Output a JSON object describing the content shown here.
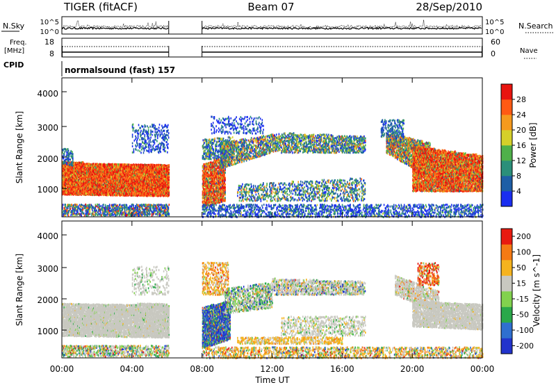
{
  "header": {
    "title": "TIGER (fitACF)",
    "beam": "Beam 07",
    "date": "28/Sep/2010"
  },
  "chart_data": [
    {
      "type": "line",
      "panel": "noise",
      "left_label": "N.Sky",
      "right_label": "N.Search",
      "left_ticks": [
        "10^5",
        "10^0"
      ],
      "right_ticks": [
        "10^5",
        "10^0"
      ],
      "right_legend_style": "dotted",
      "data_gap_ut": [
        6.1,
        8.0
      ]
    },
    {
      "type": "line",
      "panel": "frequency",
      "left_label_lines": [
        "Freq.",
        "[MHz]"
      ],
      "right_label": "Nave",
      "left_ticks": [
        "18",
        "8"
      ],
      "right_ticks": [
        "60",
        "0"
      ],
      "right_legend_style": "dotted",
      "data_gap_ut": [
        6.1,
        8.0
      ]
    },
    {
      "type": "table",
      "panel": "cpid",
      "label": "CPID",
      "value": "normalsound (fast) 157"
    },
    {
      "type": "heatmap",
      "panel": "power",
      "ylabel": "Slant Range [km]",
      "y_ticks": [
        "4000",
        "3000",
        "2000",
        "1000"
      ],
      "ylim": [
        180,
        4500
      ],
      "colorbar_label": "Power [dB]",
      "colorbar_ticks": [
        "28",
        "24",
        "20",
        "16",
        "12",
        "8",
        "4"
      ],
      "colors": [
        "#1a2ef0",
        "#1e5ea6",
        "#2b8f7a",
        "#4fb04a",
        "#d6d02a",
        "#f59a1e",
        "#ff5a14",
        "#e8140f"
      ],
      "data_gap_ut": [
        6.1,
        8.0
      ]
    },
    {
      "type": "heatmap",
      "panel": "velocity",
      "ylabel": "Slant Range [km]",
      "y_ticks": [
        "4000",
        "3000",
        "2000",
        "1000"
      ],
      "ylim": [
        180,
        4500
      ],
      "colorbar_label": "Velocity [m s^-1]",
      "colorbar_ticks": [
        "200",
        "100",
        "50",
        "15",
        "-15",
        "-50",
        "-100",
        "-200"
      ],
      "colors": [
        "#2233cc",
        "#2f6fd0",
        "#2aa84a",
        "#82d24e",
        "#c8c8c0",
        "#f5b31e",
        "#f57a14",
        "#e81a10"
      ],
      "data_gap_ut": [
        6.1,
        8.0
      ]
    }
  ],
  "x_axis": {
    "xlabel": "Time UT",
    "ticks": [
      "00:00",
      "04:00",
      "08:00",
      "12:00",
      "16:00",
      "20:00",
      "00:00"
    ],
    "xlim": [
      0,
      24
    ]
  }
}
